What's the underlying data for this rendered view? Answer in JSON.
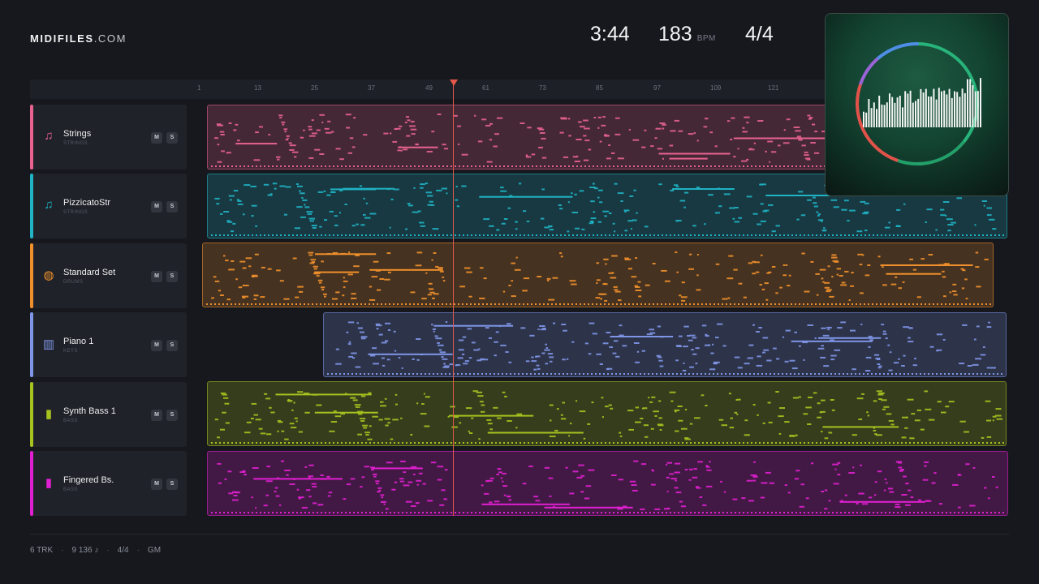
{
  "brand": {
    "bold": "MIDIFILES",
    "light": ".COM"
  },
  "transport": {
    "time": "3:44",
    "tempo": "183",
    "tempo_unit": "BPM",
    "signature": "4/4"
  },
  "ruler": {
    "ticks": [
      "1",
      "13",
      "25",
      "37",
      "49",
      "61",
      "73",
      "85",
      "97",
      "109",
      "121"
    ]
  },
  "tracks": [
    {
      "name": "Strings",
      "sub": "STRINGS",
      "color": "#e8628f",
      "icon": "violin-icon",
      "mute": "M",
      "solo": "S"
    },
    {
      "name": "PizzicatoStr",
      "sub": "STRINGS",
      "color": "#1fb3c4",
      "icon": "violin-icon",
      "mute": "M",
      "solo": "S"
    },
    {
      "name": "Standard Set",
      "sub": "DRUMS",
      "color": "#f0902c",
      "icon": "drum-icon",
      "mute": "M",
      "solo": "S"
    },
    {
      "name": "Piano 1",
      "sub": "KEYS",
      "color": "#7f96e8",
      "icon": "piano-keys-icon",
      "mute": "M",
      "solo": "S"
    },
    {
      "name": "Synth Bass 1",
      "sub": "BASS",
      "color": "#a6c21f",
      "icon": "bass-icon",
      "mute": "M",
      "solo": "S"
    },
    {
      "name": "Fingered Bs.",
      "sub": "BASS",
      "color": "#e11fd2",
      "icon": "bass-icon",
      "mute": "M",
      "solo": "S"
    }
  ],
  "footer": {
    "tracks": "6 TRK",
    "notes": "9 136 ♪",
    "signature": "4/4",
    "standard": "GM"
  }
}
